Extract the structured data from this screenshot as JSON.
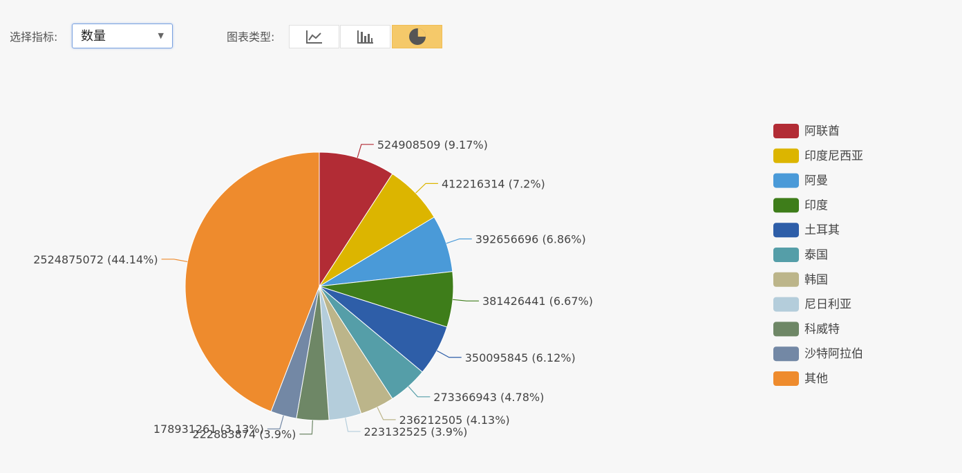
{
  "toolbar": {
    "indicator_label": "选择指标:",
    "indicator_value": "数量",
    "chart_type_label": "图表类型:",
    "chart_types": [
      {
        "icon": "line-chart-icon",
        "active": false
      },
      {
        "icon": "bar-chart-icon",
        "active": false
      },
      {
        "icon": "pie-chart-icon",
        "active": true
      }
    ]
  },
  "chart_data": {
    "type": "pie",
    "title": "",
    "slices": [
      {
        "name": "阿联酋",
        "value": 524908509,
        "label": "524908509 (9.17%)",
        "color": "#b22c35"
      },
      {
        "name": "印度尼西亚",
        "value": 412216314,
        "label": "412216314 (7.2%)",
        "color": "#dcb500"
      },
      {
        "name": "阿曼",
        "value": 392656696,
        "label": "392656696 (6.86%)",
        "color": "#4a9ad8"
      },
      {
        "name": "印度",
        "value": 381426441,
        "label": "381426441 (6.67%)",
        "color": "#3e7d1a"
      },
      {
        "name": "土耳其",
        "value": 350095845,
        "label": "350095845 (6.12%)",
        "color": "#2e5ea8"
      },
      {
        "name": "泰国",
        "value": 273366943,
        "label": "273366943 (4.78%)",
        "color": "#559ea8"
      },
      {
        "name": "韩国",
        "value": 236212505,
        "label": "236212505 (4.13%)",
        "color": "#bcb58a"
      },
      {
        "name": "尼日利亚",
        "value": 223132525,
        "label": "223132525 (3.9%)",
        "color": "#b4cddb"
      },
      {
        "name": "科威特",
        "value": 222883874,
        "label": "222883874 (3.9%)",
        "color": "#6e8766"
      },
      {
        "name": "沙特阿拉伯",
        "value": 178931261,
        "label": "178931261 (3.13%)",
        "color": "#7388a5"
      },
      {
        "name": "其他",
        "value": 2524875072,
        "label": "2524875072 (44.14%)",
        "color": "#ee8b2d"
      }
    ],
    "legend_position": "right"
  }
}
